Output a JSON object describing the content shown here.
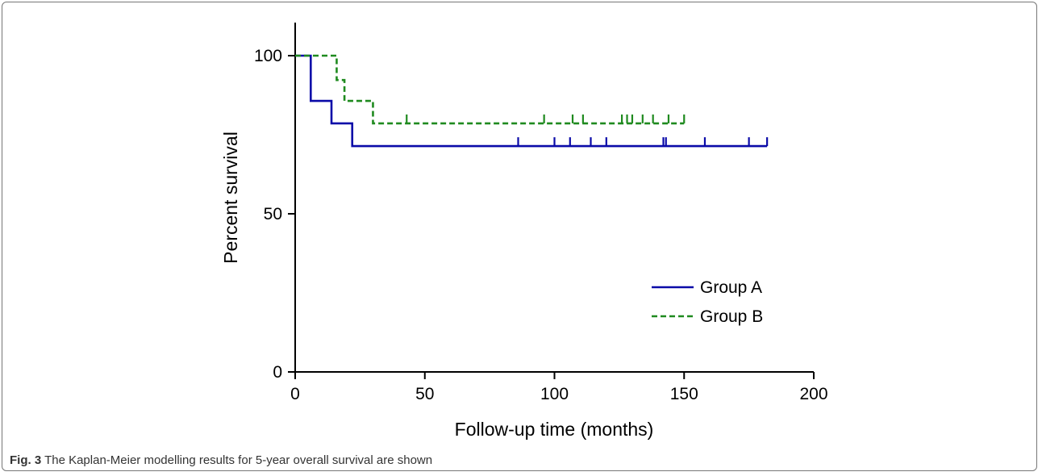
{
  "caption": {
    "label": "Fig. 3",
    "text": " The Kaplan-Meier modelling results for 5-year overall survival are shown"
  },
  "chart_data": {
    "type": "line",
    "subtype": "kaplan-meier-step",
    "title": "",
    "xlabel": "Follow-up time (months)",
    "ylabel": "Percent survival",
    "xlim": [
      0,
      200
    ],
    "ylim": [
      0,
      100
    ],
    "xticks": [
      0,
      50,
      100,
      150,
      200
    ],
    "yticks": [
      0,
      50,
      100
    ],
    "grid": false,
    "legend_position": "bottom-right",
    "series": [
      {
        "name": "Group A",
        "color": "#0a0aa8",
        "style": "solid",
        "steps": [
          [
            0,
            100
          ],
          [
            6,
            85.7
          ],
          [
            14,
            78.6
          ],
          [
            22,
            71.4
          ],
          [
            182,
            71.4
          ]
        ],
        "censored": [
          86,
          100,
          106,
          114,
          120,
          142,
          143,
          158,
          175,
          182
        ]
      },
      {
        "name": "Group B",
        "color": "#1f8a1f",
        "style": "dashed",
        "steps": [
          [
            0,
            100
          ],
          [
            16,
            92.3
          ],
          [
            19,
            85.7
          ],
          [
            30,
            78.6
          ],
          [
            150,
            78.6
          ]
        ],
        "censored": [
          43,
          96,
          107,
          111,
          126,
          128,
          130,
          134,
          138,
          144,
          150
        ]
      }
    ]
  }
}
